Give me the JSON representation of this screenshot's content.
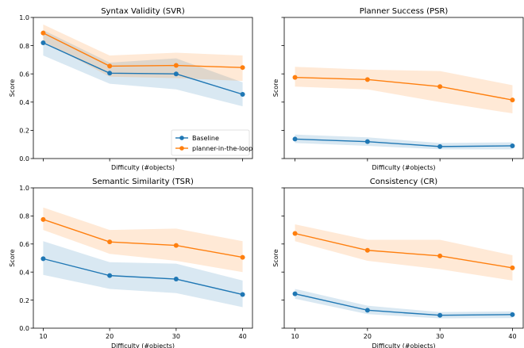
{
  "colors": {
    "baseline": "#1f77b4",
    "loop": "#ff7f0e",
    "baseline_band": "#1f77b4",
    "loop_band": "#ff7f0e",
    "axis": "#000000",
    "background": "#ffffff"
  },
  "legend": {
    "location": "lower right of first panel",
    "entries": [
      "Baseline",
      "planner-in-the-loop"
    ]
  },
  "chart_data": [
    {
      "type": "line",
      "title": "Syntax Validity (SVR)",
      "xlabel": "Difficulty (#objects)",
      "ylabel": "Score",
      "x": [
        10,
        20,
        30,
        40
      ],
      "xticks": [
        "10",
        "20",
        "30",
        "40"
      ],
      "show_xticklabels": false,
      "show_yticklabels": true,
      "ylim": [
        0,
        1.0
      ],
      "yticks": [
        "0.0",
        "0.2",
        "0.4",
        "0.6",
        "0.8",
        "1.0"
      ],
      "grid": false,
      "legend": true,
      "series": [
        {
          "name": "Baseline",
          "values": [
            0.82,
            0.605,
            0.6,
            0.455
          ],
          "lower": [
            0.73,
            0.53,
            0.49,
            0.37
          ],
          "upper": [
            0.91,
            0.68,
            0.71,
            0.54
          ]
        },
        {
          "name": "planner-in-the-loop",
          "values": [
            0.89,
            0.655,
            0.66,
            0.645
          ],
          "lower": [
            0.83,
            0.58,
            0.57,
            0.55
          ],
          "upper": [
            0.95,
            0.73,
            0.75,
            0.73
          ]
        }
      ]
    },
    {
      "type": "line",
      "title": "Planner Success (PSR)",
      "xlabel": "Difficulty (#objects)",
      "ylabel": "Score",
      "x": [
        10,
        20,
        30,
        40
      ],
      "xticks": [
        "10",
        "20",
        "30",
        "40"
      ],
      "show_xticklabels": false,
      "show_yticklabels": false,
      "ylim": [
        0,
        1.0
      ],
      "yticks": [
        "0.0",
        "0.2",
        "0.4",
        "0.6",
        "0.8",
        "1.0"
      ],
      "grid": false,
      "legend": false,
      "series": [
        {
          "name": "Baseline",
          "values": [
            0.138,
            0.12,
            0.085,
            0.09
          ],
          "lower": [
            0.11,
            0.09,
            0.065,
            0.065
          ],
          "upper": [
            0.17,
            0.15,
            0.11,
            0.115
          ]
        },
        {
          "name": "planner-in-the-loop",
          "values": [
            0.575,
            0.56,
            0.51,
            0.415
          ],
          "lower": [
            0.51,
            0.49,
            0.4,
            0.32
          ],
          "upper": [
            0.65,
            0.63,
            0.62,
            0.52
          ]
        }
      ]
    },
    {
      "type": "line",
      "title": "Semantic Similarity (TSR)",
      "xlabel": "Difficulty (#objects)",
      "ylabel": "Score",
      "x": [
        10,
        20,
        30,
        40
      ],
      "xticks": [
        "10",
        "20",
        "30",
        "40"
      ],
      "show_xticklabels": true,
      "show_yticklabels": true,
      "ylim": [
        0,
        1.0
      ],
      "yticks": [
        "0.0",
        "0.2",
        "0.4",
        "0.6",
        "0.8",
        "1.0"
      ],
      "grid": false,
      "legend": false,
      "series": [
        {
          "name": "Baseline",
          "values": [
            0.495,
            0.375,
            0.35,
            0.24
          ],
          "lower": [
            0.38,
            0.28,
            0.25,
            0.15
          ],
          "upper": [
            0.62,
            0.47,
            0.46,
            0.34
          ]
        },
        {
          "name": "planner-in-the-loop",
          "values": [
            0.775,
            0.615,
            0.59,
            0.505
          ],
          "lower": [
            0.7,
            0.53,
            0.48,
            0.4
          ],
          "upper": [
            0.86,
            0.7,
            0.71,
            0.62
          ]
        }
      ]
    },
    {
      "type": "line",
      "title": "Consistency (CR)",
      "xlabel": "Difficulty (#objects)",
      "ylabel": "Score",
      "x": [
        10,
        20,
        30,
        40
      ],
      "xticks": [
        "10",
        "20",
        "30",
        "40"
      ],
      "show_xticklabels": true,
      "show_yticklabels": false,
      "ylim": [
        0,
        1.0
      ],
      "yticks": [
        "0.0",
        "0.2",
        "0.4",
        "0.6",
        "0.8",
        "1.0"
      ],
      "grid": false,
      "legend": false,
      "series": [
        {
          "name": "Baseline",
          "values": [
            0.245,
            0.128,
            0.092,
            0.097
          ],
          "lower": [
            0.21,
            0.1,
            0.07,
            0.072
          ],
          "upper": [
            0.28,
            0.16,
            0.115,
            0.12
          ]
        },
        {
          "name": "planner-in-the-loop",
          "values": [
            0.675,
            0.555,
            0.515,
            0.43
          ],
          "lower": [
            0.62,
            0.48,
            0.42,
            0.34
          ],
          "upper": [
            0.74,
            0.63,
            0.63,
            0.52
          ]
        }
      ]
    }
  ]
}
